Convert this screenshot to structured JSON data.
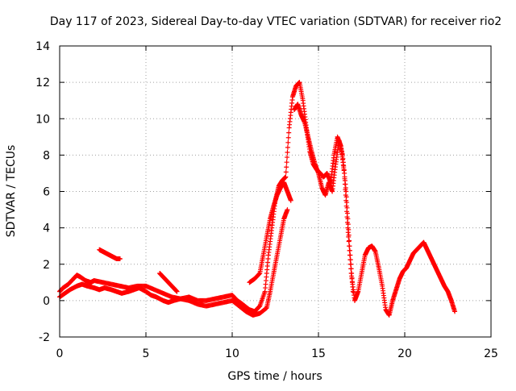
{
  "chart_data": {
    "type": "scatter",
    "title": "Day 117 of 2023, Sidereal Day-to-day VTEC variation (SDTVAR) for receiver rio2",
    "xlabel": "GPS time / hours",
    "ylabel": "SDTVAR / TECUs",
    "xlim": [
      0,
      25
    ],
    "ylim": [
      -2,
      14
    ],
    "xticks": [
      0,
      5,
      10,
      15,
      20,
      25
    ],
    "yticks": [
      -2,
      0,
      2,
      4,
      6,
      8,
      10,
      12,
      14
    ],
    "grid": true,
    "marker": "plus",
    "color": "#ff0000",
    "series": [
      {
        "x": [
          0.0,
          0.2,
          0.5,
          0.8,
          1.0,
          1.2,
          1.5,
          1.8,
          2.0,
          2.5,
          3.0,
          3.5,
          4.0,
          4.5,
          5.0,
          5.5,
          6.0,
          6.5,
          7.0,
          7.5,
          8.0,
          8.5,
          9.0,
          9.5,
          10.0,
          10.3,
          10.6,
          11.0,
          11.3,
          11.6,
          11.9,
          12.1,
          12.3,
          12.5,
          12.7,
          12.9,
          13.1,
          13.3,
          13.5,
          13.7,
          13.9,
          14.1,
          14.3,
          14.5,
          14.7,
          14.9,
          15.1,
          15.3,
          15.5,
          15.7,
          15.9,
          16.1,
          16.3,
          16.5,
          16.7,
          16.9,
          17.1,
          17.3,
          17.5,
          17.7,
          17.9,
          18.1,
          18.3,
          18.5,
          18.7,
          18.9,
          19.1,
          19.3,
          19.5,
          19.7,
          19.9,
          20.1,
          20.3,
          20.5,
          20.7,
          20.9,
          21.1,
          21.3,
          21.5,
          21.7,
          21.9,
          22.1,
          22.3,
          22.5,
          22.7,
          22.9
        ],
        "y": [
          0.5,
          0.7,
          0.9,
          1.2,
          1.4,
          1.3,
          1.1,
          1.0,
          1.1,
          1.0,
          0.9,
          0.8,
          0.7,
          0.8,
          0.8,
          0.6,
          0.4,
          0.2,
          0.1,
          0.2,
          0.0,
          0.0,
          0.1,
          0.2,
          0.3,
          0.0,
          -0.2,
          -0.5,
          -0.6,
          -0.3,
          0.5,
          2.5,
          4.0,
          5.5,
          6.3,
          6.6,
          6.8,
          9.5,
          11.2,
          11.8,
          12.0,
          11.0,
          9.5,
          8.2,
          7.5,
          7.2,
          7.0,
          6.8,
          7.0,
          6.5,
          8.0,
          9.0,
          8.5,
          7.0,
          4.0,
          1.5,
          0.0,
          0.5,
          1.5,
          2.5,
          2.9,
          3.0,
          2.7,
          1.8,
          0.8,
          -0.5,
          -0.8,
          0.0,
          0.6,
          1.2,
          1.6,
          1.8,
          2.2,
          2.6,
          2.8,
          3.0,
          3.2,
          2.8,
          2.4,
          2.0,
          1.6,
          1.2,
          0.8,
          0.5,
          0.0,
          -0.6
        ]
      },
      {
        "x": [
          0.0,
          0.3,
          0.6,
          1.0,
          1.3,
          1.6,
          2.0,
          2.3,
          2.6,
          3.0,
          3.3,
          3.6,
          4.0,
          4.3,
          4.6,
          5.0,
          5.3,
          5.6,
          6.0,
          6.3,
          6.6,
          7.0,
          7.5,
          8.0,
          8.5,
          9.0,
          9.5,
          10.0,
          10.4,
          10.8,
          11.2,
          11.6,
          12.0,
          12.2,
          12.4,
          12.6,
          12.8,
          13.0,
          13.2
        ],
        "y": [
          0.2,
          0.4,
          0.6,
          0.8,
          0.9,
          0.8,
          0.7,
          0.6,
          0.7,
          0.6,
          0.5,
          0.4,
          0.5,
          0.6,
          0.7,
          0.5,
          0.3,
          0.2,
          0.0,
          -0.1,
          0.0,
          0.1,
          0.0,
          -0.2,
          -0.3,
          -0.2,
          -0.1,
          0.0,
          -0.3,
          -0.6,
          -0.8,
          -0.7,
          -0.4,
          0.5,
          1.5,
          2.5,
          3.5,
          4.5,
          5.0
        ]
      },
      {
        "x": [
          2.3,
          2.5,
          2.7,
          2.9,
          3.1,
          3.3,
          3.5
        ],
        "y": [
          2.8,
          2.7,
          2.6,
          2.5,
          2.4,
          2.3,
          2.3
        ]
      },
      {
        "x": [
          5.8,
          6.0,
          6.2,
          6.4,
          6.6,
          6.8
        ],
        "y": [
          1.5,
          1.3,
          1.1,
          0.9,
          0.7,
          0.5
        ]
      },
      {
        "x": [
          11.0,
          11.3,
          11.6,
          11.8,
          12.0,
          12.2,
          12.4,
          12.6,
          12.8,
          13.0,
          13.2,
          13.4
        ],
        "y": [
          1.0,
          1.2,
          1.5,
          2.5,
          3.5,
          4.5,
          5.2,
          5.8,
          6.2,
          6.5,
          6.0,
          5.5
        ]
      },
      {
        "x": [
          13.6,
          13.8,
          14.0,
          14.2,
          14.4,
          14.6,
          14.8,
          15.0,
          15.2,
          15.4,
          15.6,
          15.8,
          16.0,
          16.2,
          16.4,
          16.6,
          16.8,
          17.0
        ],
        "y": [
          10.5,
          10.8,
          10.2,
          9.8,
          9.0,
          8.2,
          7.5,
          7.0,
          6.2,
          5.8,
          6.5,
          6.0,
          7.5,
          8.8,
          8.0,
          6.0,
          3.0,
          0.5
        ]
      }
    ]
  }
}
